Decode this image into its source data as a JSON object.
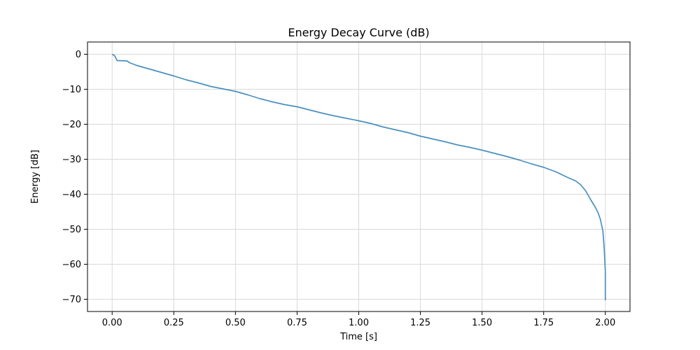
{
  "chart_data": {
    "type": "line",
    "title": "Energy Decay Curve (dB)",
    "xlabel": "Time [s]",
    "ylabel": "Energy [dB]",
    "xlim": [
      -0.1,
      2.1
    ],
    "ylim": [
      -73.5,
      3.5
    ],
    "grid": true,
    "x_ticks": [
      0.0,
      0.25,
      0.5,
      0.75,
      1.0,
      1.25,
      1.5,
      1.75,
      2.0
    ],
    "x_tick_labels": [
      "0.00",
      "0.25",
      "0.50",
      "0.75",
      "1.00",
      "1.25",
      "1.50",
      "1.75",
      "2.00"
    ],
    "y_ticks": [
      0,
      -10,
      -20,
      -30,
      -40,
      -50,
      -60,
      -70
    ],
    "y_tick_labels": [
      "0",
      "−10",
      "−20",
      "−30",
      "−40",
      "−50",
      "−60",
      "−70"
    ],
    "series": [
      {
        "color": "#4a90bf",
        "x": [
          0.0,
          0.01,
          0.02,
          0.06,
          0.07,
          0.1,
          0.15,
          0.2,
          0.25,
          0.3,
          0.35,
          0.4,
          0.45,
          0.5,
          0.55,
          0.6,
          0.65,
          0.7,
          0.75,
          0.8,
          0.85,
          0.9,
          0.95,
          1.0,
          1.05,
          1.1,
          1.15,
          1.2,
          1.25,
          1.3,
          1.35,
          1.4,
          1.45,
          1.5,
          1.55,
          1.6,
          1.65,
          1.7,
          1.75,
          1.8,
          1.85,
          1.88,
          1.9,
          1.92,
          1.94,
          1.96,
          1.97,
          1.98,
          1.99,
          1.995,
          2.0,
          2.0
        ],
        "y": [
          0.0,
          -0.4,
          -1.8,
          -1.9,
          -2.4,
          -3.2,
          -4.2,
          -5.2,
          -6.2,
          -7.3,
          -8.2,
          -9.2,
          -9.9,
          -10.6,
          -11.6,
          -12.7,
          -13.6,
          -14.4,
          -15.0,
          -15.9,
          -16.8,
          -17.6,
          -18.3,
          -19.0,
          -19.8,
          -20.8,
          -21.6,
          -22.4,
          -23.4,
          -24.2,
          -25.0,
          -25.9,
          -26.6,
          -27.4,
          -28.3,
          -29.2,
          -30.2,
          -31.3,
          -32.3,
          -33.6,
          -35.3,
          -36.2,
          -37.3,
          -39.0,
          -41.5,
          -43.8,
          -45.2,
          -47.2,
          -50.5,
          -55.0,
          -62.0,
          -70.3
        ]
      }
    ]
  }
}
